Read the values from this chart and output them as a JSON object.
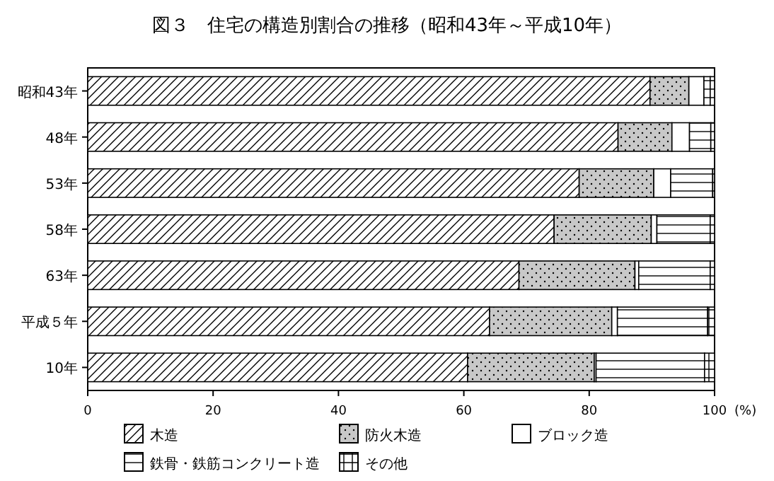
{
  "chart_data": {
    "type": "bar",
    "orientation": "horizontal",
    "stacked": true,
    "title": "図３　住宅の構造別割合の推移（昭和43年～平成10年）",
    "categories": [
      "昭和43年",
      "48年",
      "53年",
      "58年",
      "63年",
      "平成５年",
      "10年"
    ],
    "series": [
      {
        "name": "木造",
        "color": "#000000",
        "values": [
          89.7,
          84.6,
          78.4,
          74.4,
          68.8,
          64.1,
          60.6
        ]
      },
      {
        "name": "防火木造",
        "color": "#000000",
        "values": [
          6.2,
          8.6,
          11.9,
          15.5,
          18.5,
          19.5,
          20.2
        ]
      },
      {
        "name": "ブロック造",
        "color": "#000000",
        "values": [
          2.4,
          2.8,
          2.7,
          0.9,
          0.6,
          0.9,
          0.3
        ]
      },
      {
        "name": "鉄骨・鉄筋コンクリート造",
        "color": "#000000",
        "values": [
          1.0,
          3.4,
          6.7,
          8.5,
          11.4,
          14.4,
          17.3
        ]
      },
      {
        "name": "その他",
        "color": "#000000",
        "values": [
          0.7,
          0.6,
          0.3,
          0.7,
          0.7,
          1.1,
          1.6
        ]
      }
    ],
    "xlim": [
      0,
      100
    ],
    "xticks": [
      0,
      20,
      40,
      60,
      80,
      100
    ],
    "xlabel": "(%)",
    "grid": false,
    "legend": "bottom"
  }
}
